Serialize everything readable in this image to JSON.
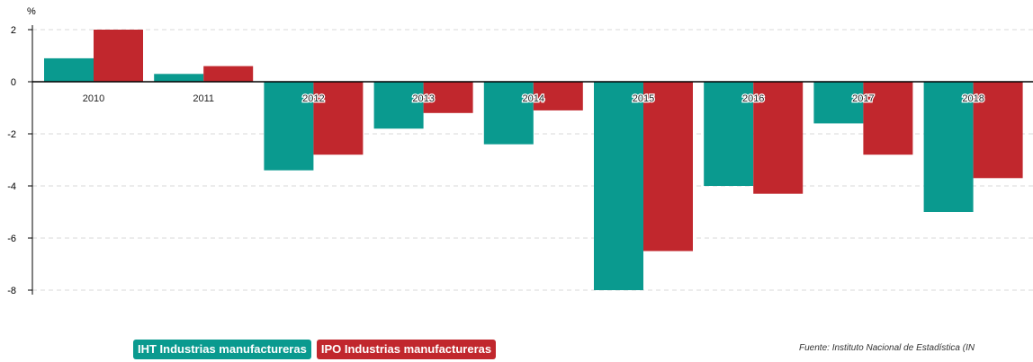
{
  "chart_data": {
    "type": "bar",
    "unit_label": "%",
    "categories": [
      "2010",
      "2011",
      "2012",
      "2013",
      "2014",
      "2015",
      "2016",
      "2017",
      "2018"
    ],
    "series": [
      {
        "name": "IHT Industrias manufactureras",
        "color": "#0a9a8f",
        "values": [
          0.9,
          0.3,
          -3.4,
          -1.8,
          -2.4,
          -8.0,
          -4.0,
          -1.6,
          -5.0
        ]
      },
      {
        "name": "IPO Industrias manufactureras",
        "color": "#c1272d",
        "values": [
          2.0,
          0.6,
          -2.8,
          -1.2,
          -1.1,
          -6.5,
          -4.3,
          -2.8,
          -3.7
        ]
      }
    ],
    "yticks": [
      2,
      0,
      -2,
      -4,
      -6,
      -8
    ],
    "ylim": [
      -8,
      2
    ],
    "grid": true,
    "legend_position": "bottom-left"
  },
  "source": {
    "text": "Fuente: Instituto Nacional de Estadística (IN"
  }
}
